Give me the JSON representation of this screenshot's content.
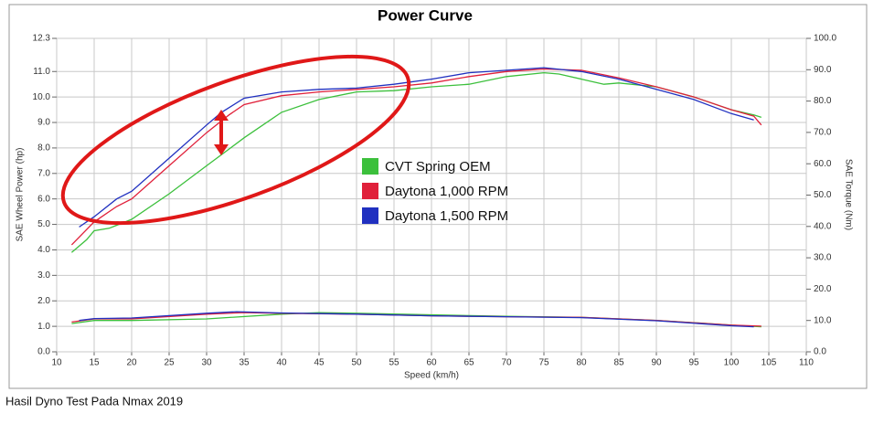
{
  "chart_data": {
    "type": "line",
    "title": "Power Curve",
    "caption": "Hasil Dyno Test Pada Nmax 2019",
    "x_label": "Speed (km/h)",
    "y_label": "SAE Wheel Power (hp)",
    "y2_label": "SAE Torque (Nm)",
    "xlim": [
      10,
      110
    ],
    "xticks": [
      10,
      15,
      20,
      25,
      30,
      35,
      40,
      45,
      50,
      55,
      60,
      65,
      70,
      75,
      80,
      85,
      90,
      95,
      100,
      105,
      110
    ],
    "ylim": [
      0,
      12.3
    ],
    "yticks": [
      {
        "value": 0,
        "label": "0.0"
      },
      {
        "value": 1,
        "label": "1.0"
      },
      {
        "value": 2,
        "label": "2.0"
      },
      {
        "value": 3,
        "label": "3.0"
      },
      {
        "value": 4,
        "label": "4.0"
      },
      {
        "value": 5,
        "label": "5.0"
      },
      {
        "value": 6,
        "label": "6.0"
      },
      {
        "value": 7,
        "label": "7.0"
      },
      {
        "value": 8,
        "label": "8.0"
      },
      {
        "value": 9,
        "label": "9.0"
      },
      {
        "value": 10,
        "label": "10.0"
      },
      {
        "value": 11,
        "label": "11.0"
      },
      12.3
    ],
    "y2lim": [
      0,
      100
    ],
    "y2ticks": [
      {
        "value": 0,
        "label": "0.0"
      },
      {
        "value": 10,
        "label": "10.0"
      },
      {
        "value": 20,
        "label": "20.0"
      },
      {
        "value": 30,
        "label": "30.0"
      },
      {
        "value": 40,
        "label": "40.0"
      },
      {
        "value": 50,
        "label": "50.0"
      },
      {
        "value": 60,
        "label": "60.0"
      },
      {
        "value": 70,
        "label": "70.0"
      },
      {
        "value": 80,
        "label": "80.0"
      },
      {
        "value": 90,
        "label": "90.0"
      },
      {
        "value": 100,
        "label": "100.0"
      }
    ],
    "grid": true,
    "legend": "center",
    "series": [
      {
        "name": "CVT Spring OEM",
        "color": "#3cc03c",
        "x": [
          12,
          14,
          15,
          17,
          20,
          25,
          30,
          35,
          40,
          45,
          50,
          55,
          60,
          65,
          70,
          75,
          77,
          80,
          83,
          85,
          90,
          95,
          100,
          103,
          104
        ],
        "values": [
          3.9,
          4.4,
          4.75,
          4.85,
          5.2,
          6.2,
          7.3,
          8.4,
          9.4,
          9.9,
          10.2,
          10.25,
          10.4,
          10.5,
          10.8,
          10.95,
          10.9,
          10.7,
          10.5,
          10.55,
          10.4,
          10.0,
          9.5,
          9.3,
          9.2
        ]
      },
      {
        "name": "Daytona 1,000 RPM",
        "color": "#e0203a",
        "x": [
          12,
          15,
          18,
          20,
          25,
          30,
          33,
          35,
          40,
          45,
          50,
          55,
          60,
          65,
          70,
          75,
          80,
          85,
          90,
          95,
          100,
          103,
          104
        ],
        "values": [
          4.2,
          5.1,
          5.7,
          6.0,
          7.3,
          8.6,
          9.3,
          9.7,
          10.05,
          10.2,
          10.3,
          10.4,
          10.55,
          10.8,
          11.0,
          11.1,
          11.05,
          10.75,
          10.4,
          10.0,
          9.5,
          9.25,
          8.9
        ]
      },
      {
        "name": "Daytona 1,500 RPM",
        "color": "#2030c0",
        "x": [
          13,
          15,
          18,
          20,
          25,
          30,
          32,
          35,
          40,
          45,
          50,
          55,
          60,
          65,
          70,
          75,
          80,
          85,
          90,
          95,
          100,
          103
        ],
        "values": [
          4.9,
          5.3,
          6.0,
          6.3,
          7.6,
          8.9,
          9.4,
          9.95,
          10.2,
          10.3,
          10.35,
          10.5,
          10.7,
          10.95,
          11.05,
          11.15,
          11.0,
          10.7,
          10.3,
          9.9,
          9.35,
          9.1
        ]
      },
      {
        "color": "#3cc03c",
        "axis": "y2",
        "x": [
          12,
          15,
          20,
          30,
          40,
          45,
          50,
          60,
          70,
          80,
          90,
          95,
          100,
          104
        ],
        "values": [
          9,
          10,
          10,
          10.5,
          12,
          12.5,
          12.3,
          11.8,
          11.3,
          11,
          10,
          9.3,
          8.5,
          8
        ]
      },
      {
        "color": "#e0203a",
        "axis": "y2",
        "x": [
          12,
          15,
          20,
          30,
          35,
          40,
          50,
          60,
          70,
          80,
          90,
          100,
          104
        ],
        "values": [
          9.5,
          10.5,
          10.5,
          12,
          12.5,
          12.3,
          12,
          11.5,
          11.2,
          11,
          10,
          8.5,
          8.2
        ]
      },
      {
        "color": "#2030c0",
        "axis": "y2",
        "x": [
          13,
          15,
          20,
          30,
          34,
          40,
          50,
          60,
          70,
          80,
          90,
          100,
          103
        ],
        "values": [
          10,
          10.6,
          10.8,
          12.3,
          12.8,
          12.4,
          12,
          11.5,
          11.2,
          10.9,
          9.9,
          8.3,
          8
        ]
      }
    ]
  }
}
